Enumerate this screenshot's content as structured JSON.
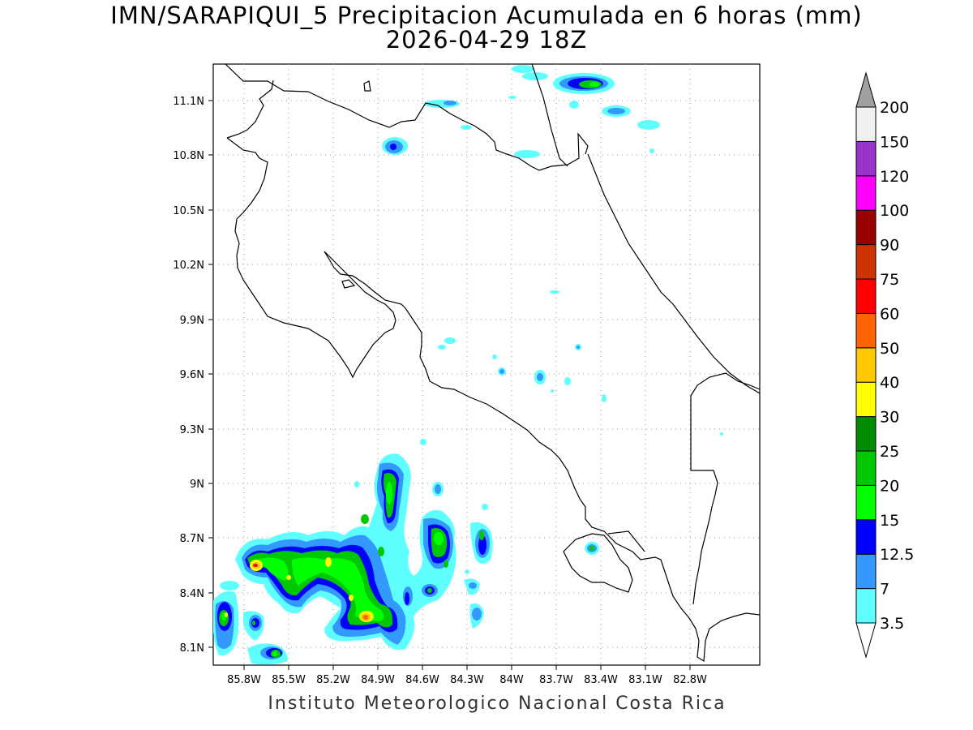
{
  "title": "IMN/SARAPIQUI_5 Precipitacion Acumulada en 6 horas (mm)",
  "subtitle": "2026-04-29 18Z",
  "credit": "Instituto Meteorologico Nacional Costa Rica",
  "map": {
    "lat_labels": [
      "11.1N",
      "10.8N",
      "10.5N",
      "10.2N",
      "9.9N",
      "9.6N",
      "9.3N",
      "9N",
      "8.7N",
      "8.4N",
      "8.1N"
    ],
    "lon_labels": [
      "85.8W",
      "85.5W",
      "85.2W",
      "84.9W",
      "84.6W",
      "84.3W",
      "84W",
      "83.7W",
      "83.4W",
      "83.1W",
      "82.8W"
    ],
    "grid": "dotted",
    "region": "Costa Rica"
  },
  "colorbar": {
    "units": "mm",
    "levels": [
      "3.5",
      "7",
      "12.5",
      "15",
      "20",
      "25",
      "30",
      "40",
      "50",
      "60",
      "75",
      "90",
      "100",
      "120",
      "150",
      "200"
    ],
    "colors": [
      "#5fffff",
      "#3399ff",
      "#0000ff",
      "#00ff00",
      "#00c800",
      "#008c00",
      "#ffff00",
      "#ffc800",
      "#ff6400",
      "#ff0000",
      "#cc3300",
      "#990000",
      "#ff00ff",
      "#9933cc",
      "#f0f0f0",
      "#a0a0a0"
    ]
  },
  "palette": {
    "c1": "#5fffff",
    "c2": "#3399ff",
    "c3": "#0000ff",
    "c4": "#00ff00",
    "c5": "#00c800",
    "c6": "#ffff00",
    "c7": "#ffc800",
    "c8": "#ff6400",
    "c9": "#ff0000"
  },
  "rain_cells": [
    {
      "lon": -84.88,
      "lat": 10.85,
      "max_mm": 15
    },
    {
      "lon": -83.57,
      "lat": 11.19,
      "max_mm": 25
    },
    {
      "lon": -85.8,
      "lat": 8.53,
      "max_mm": 75
    },
    {
      "lon": -85.04,
      "lat": 8.27,
      "max_mm": 60
    },
    {
      "lon": -84.88,
      "lat": 9.09,
      "max_mm": 25
    },
    {
      "lon": -84.58,
      "lat": 8.73,
      "max_mm": 25
    },
    {
      "lon": -85.93,
      "lat": 8.29,
      "max_mm": 40
    },
    {
      "lon": -85.14,
      "lat": 8.39,
      "max_mm": 40
    }
  ]
}
